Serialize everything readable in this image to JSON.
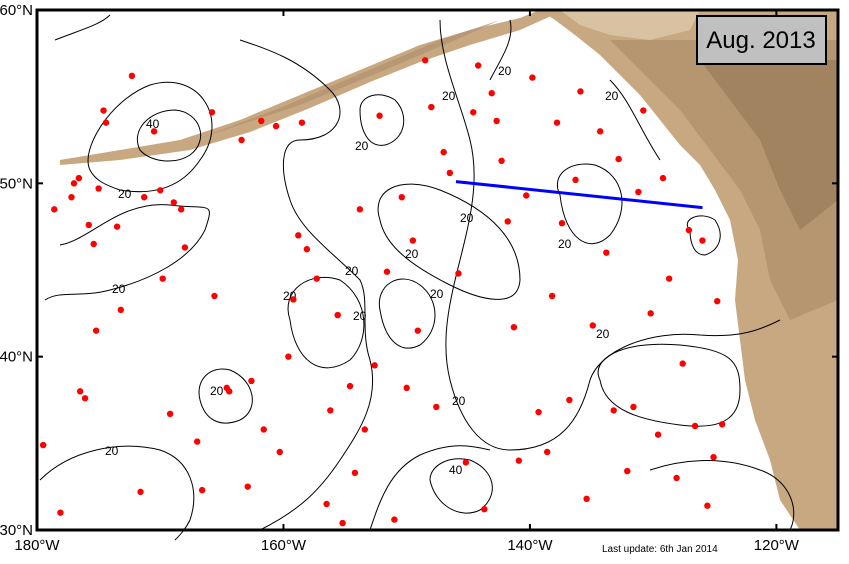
{
  "map": {
    "date_label": "Aug. 2013",
    "last_update": "Last update: 6th Jan 2014",
    "lat_ticks": [
      {
        "value": 30,
        "label": "30°N"
      },
      {
        "value": 40,
        "label": "40°N"
      },
      {
        "value": 50,
        "label": "50°N"
      },
      {
        "value": 60,
        "label": "60°N"
      }
    ],
    "lon_ticks": [
      {
        "value": -180,
        "label": "180°W"
      },
      {
        "value": -160,
        "label": "160°W"
      },
      {
        "value": -140,
        "label": "140°W"
      },
      {
        "value": -120,
        "label": "120°W"
      }
    ],
    "lon_range": [
      -180,
      -115
    ],
    "lat_range": [
      30,
      60
    ],
    "colors": {
      "float_marker": "#ff0000",
      "section_line": "#0000ff",
      "land": "#c8a880",
      "contour": "#000000",
      "label_box": "#c0c0c0"
    },
    "contour_labels": [
      "40",
      "20",
      "20",
      "20",
      "20",
      "20",
      "20",
      "20",
      "20",
      "20",
      "20",
      "20",
      "20",
      "20",
      "20",
      "20",
      "20",
      "20",
      "40"
    ],
    "section_line": {
      "from": [
        -146,
        50.1
      ],
      "to": [
        -126,
        48.6
      ]
    },
    "floats": [
      [
        -179.5,
        34.9
      ],
      [
        -178.6,
        48.5
      ],
      [
        -178.1,
        31.0
      ],
      [
        -177.2,
        49.2
      ],
      [
        -177.0,
        50.0
      ],
      [
        -176.6,
        50.3
      ],
      [
        -176.5,
        38.0
      ],
      [
        -176.1,
        37.6
      ],
      [
        -175.8,
        47.6
      ],
      [
        -175.4,
        46.5
      ],
      [
        -175.2,
        41.5
      ],
      [
        -175.0,
        49.7
      ],
      [
        -174.6,
        54.2
      ],
      [
        -174.4,
        53.5
      ],
      [
        -173.5,
        47.5
      ],
      [
        -173.2,
        42.7
      ],
      [
        -172.3,
        56.2
      ],
      [
        -171.6,
        32.2
      ],
      [
        -171.3,
        49.2
      ],
      [
        -170.5,
        53.0
      ],
      [
        -170.0,
        49.6
      ],
      [
        -169.8,
        44.5
      ],
      [
        -169.2,
        36.7
      ],
      [
        -168.9,
        48.9
      ],
      [
        -168.3,
        48.5
      ],
      [
        -168.0,
        46.3
      ],
      [
        -167.0,
        35.1
      ],
      [
        -166.6,
        32.3
      ],
      [
        -165.8,
        54.1
      ],
      [
        -165.6,
        43.5
      ],
      [
        -164.6,
        38.2
      ],
      [
        -164.4,
        38.0
      ],
      [
        -163.4,
        52.5
      ],
      [
        -162.9,
        32.5
      ],
      [
        -162.6,
        38.6
      ],
      [
        -161.8,
        53.6
      ],
      [
        -161.6,
        35.8
      ],
      [
        -160.6,
        53.3
      ],
      [
        -160.3,
        34.5
      ],
      [
        -159.6,
        40.0
      ],
      [
        -159.2,
        43.3
      ],
      [
        -158.8,
        47.0
      ],
      [
        -158.5,
        53.5
      ],
      [
        -158.1,
        46.2
      ],
      [
        -157.3,
        44.5
      ],
      [
        -156.5,
        31.5
      ],
      [
        -156.2,
        36.9
      ],
      [
        -155.6,
        42.4
      ],
      [
        -155.2,
        30.4
      ],
      [
        -154.6,
        38.3
      ],
      [
        -154.2,
        33.3
      ],
      [
        -153.8,
        48.5
      ],
      [
        -153.4,
        35.8
      ],
      [
        -152.6,
        39.5
      ],
      [
        -152.2,
        53.9
      ],
      [
        -151.6,
        44.9
      ],
      [
        -151.0,
        30.6
      ],
      [
        -150.4,
        49.2
      ],
      [
        -150.0,
        38.2
      ],
      [
        -149.5,
        46.7
      ],
      [
        -149.1,
        41.5
      ],
      [
        -148.5,
        57.1
      ],
      [
        -148.0,
        54.4
      ],
      [
        -147.6,
        37.1
      ],
      [
        -147.0,
        51.8
      ],
      [
        -146.5,
        50.6
      ],
      [
        -145.8,
        44.8
      ],
      [
        -145.2,
        33.9
      ],
      [
        -144.6,
        54.1
      ],
      [
        -144.2,
        56.8
      ],
      [
        -143.7,
        31.2
      ],
      [
        -143.1,
        55.2
      ],
      [
        -142.7,
        53.6
      ],
      [
        -142.3,
        51.3
      ],
      [
        -141.8,
        47.8
      ],
      [
        -141.3,
        41.7
      ],
      [
        -140.9,
        34.0
      ],
      [
        -140.3,
        49.3
      ],
      [
        -139.8,
        56.1
      ],
      [
        -139.3,
        36.8
      ],
      [
        -138.6,
        34.5
      ],
      [
        -138.2,
        43.5
      ],
      [
        -137.8,
        53.5
      ],
      [
        -137.4,
        47.7
      ],
      [
        -136.8,
        37.5
      ],
      [
        -136.3,
        50.2
      ],
      [
        -135.9,
        55.3
      ],
      [
        -135.4,
        31.8
      ],
      [
        -134.9,
        41.8
      ],
      [
        -134.3,
        53.0
      ],
      [
        -133.8,
        46.0
      ],
      [
        -133.2,
        36.9
      ],
      [
        -132.8,
        51.4
      ],
      [
        -132.1,
        33.4
      ],
      [
        -131.6,
        37.1
      ],
      [
        -131.2,
        49.5
      ],
      [
        -130.8,
        54.2
      ],
      [
        -130.2,
        42.5
      ],
      [
        -129.6,
        35.5
      ],
      [
        -129.2,
        50.3
      ],
      [
        -128.7,
        44.5
      ],
      [
        -128.1,
        33.0
      ],
      [
        -127.6,
        39.6
      ],
      [
        -127.1,
        47.3
      ],
      [
        -126.6,
        36.0
      ],
      [
        -126.0,
        46.7
      ],
      [
        -125.6,
        31.4
      ],
      [
        -125.1,
        34.2
      ],
      [
        -124.8,
        43.2
      ],
      [
        -124.4,
        36.1
      ]
    ]
  }
}
